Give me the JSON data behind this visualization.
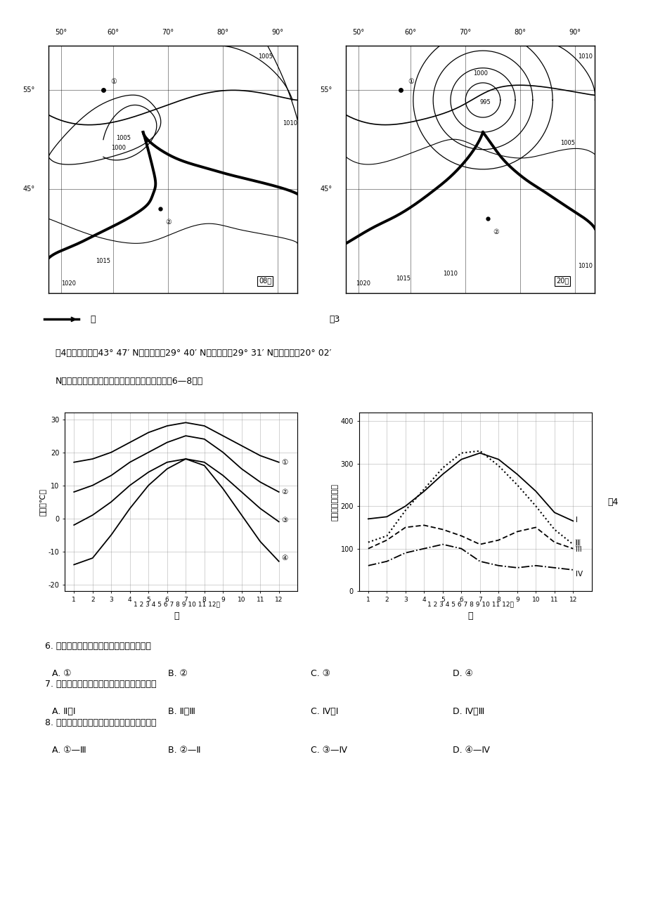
{
  "bg_color": "#ffffff",
  "map1_lon_ticks": [
    "50°",
    "60°",
    "70°",
    "80°",
    "90°"
  ],
  "map2_lon_ticks": [
    "50°",
    "60°",
    "70°",
    "80°",
    "90°"
  ],
  "lat55": "55°",
  "lat45": "45°",
  "map1_time": "08时",
  "map2_time": "20时",
  "front_text": "锋",
  "fig3_label": "图3",
  "intro_line1": "图4是乌鲁木齐（43° 47′ N）、拉萨（29° 40′ N）、重庆（29° 31′ N）和海口（20° 02′",
  "intro_line2": "N）四城市的气温、日照年变化曲线图。读图回策6—8题。",
  "chart1_ylabel": "气温（℃）",
  "chart1_xfooter": "甲",
  "chart2_ylabel": "日照时数（小时）",
  "chart2_xfooter": "乙",
  "fig4_label": "图4",
  "month_label": "月",
  "temp_curve1": [
    17,
    18,
    20,
    23,
    26,
    28,
    29,
    28,
    25,
    22,
    19,
    17
  ],
  "temp_curve2": [
    8,
    10,
    13,
    17,
    20,
    23,
    25,
    24,
    20,
    15,
    11,
    8
  ],
  "temp_curve3": [
    -2,
    1,
    5,
    10,
    14,
    17,
    18,
    17,
    13,
    8,
    3,
    -1
  ],
  "temp_curve4": [
    -14,
    -12,
    -5,
    3,
    10,
    15,
    18,
    16,
    9,
    1,
    -7,
    -13
  ],
  "sun_curve1": [
    170,
    175,
    200,
    235,
    275,
    310,
    325,
    310,
    275,
    235,
    185,
    165
  ],
  "sun_curve2": [
    115,
    130,
    190,
    240,
    290,
    325,
    330,
    295,
    250,
    200,
    145,
    110
  ],
  "sun_curve3": [
    100,
    120,
    150,
    155,
    145,
    130,
    110,
    120,
    140,
    150,
    115,
    100
  ],
  "sun_curve4": [
    60,
    70,
    90,
    100,
    110,
    100,
    70,
    60,
    55,
    60,
    55,
    50
  ],
  "q6": "6. 图中能反映气温受地势影响较大的曲线是",
  "q6a": "A. ①",
  "q6b": "B. ②",
  "q6c": "C. ③",
  "q6d": "D. ④",
  "q7": "7. 乙图中代表重庆、拉萨日照年变化的曲线是",
  "q7a": "A. Ⅱ、Ⅰ",
  "q7b": "B. Ⅱ、Ⅲ",
  "q7c": "C. Ⅳ、Ⅰ",
  "q7d": "D. Ⅳ、Ⅲ",
  "q8": "8. 四城市中气温曲线与日照曲线组合正确的是",
  "q8a": "A. ①—Ⅲ",
  "q8b": "B. ②—Ⅱ",
  "q8c": "C. ③—Ⅳ",
  "q8d": "D. ④—Ⅳ"
}
